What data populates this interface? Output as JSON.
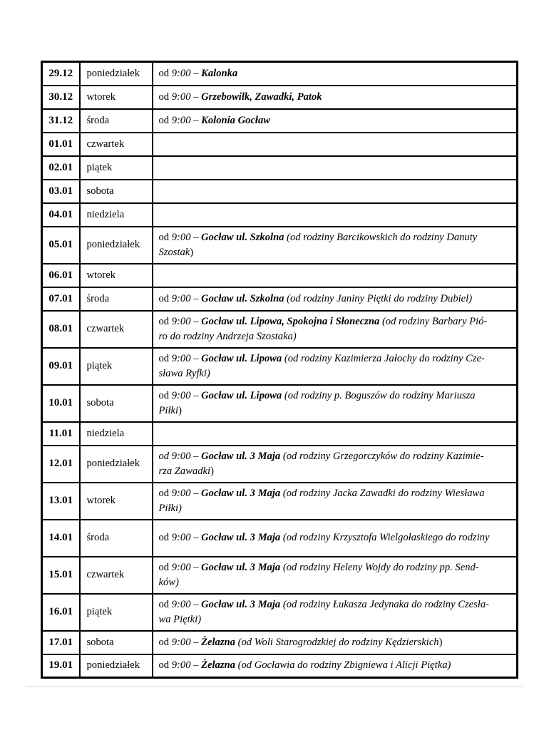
{
  "colors": {
    "background": "#ffffff",
    "table_border": "#000000",
    "text": "#000000",
    "shadow_line": "#d7d7d7"
  },
  "segment_styles": {
    "r": "regular",
    "i": "italic",
    "b": "bold-italic"
  },
  "table": {
    "columns": [
      "date",
      "day",
      "description"
    ],
    "rows": [
      {
        "date": "29.12",
        "day": "poniedziałek",
        "desc": [
          {
            "t": "od ",
            "s": "r"
          },
          {
            "t": "9:00",
            "s": "i"
          },
          {
            "t": " – ",
            "s": "r"
          },
          {
            "t": "Kalonka",
            "s": "b"
          }
        ]
      },
      {
        "date": "30.12",
        "day": "wtorek",
        "desc": [
          {
            "t": "od ",
            "s": "r"
          },
          {
            "t": "9:00",
            "s": "i"
          },
          {
            "t": " – ",
            "s": "r"
          },
          {
            "t": "Grzebowilk, Zawadki, Patok",
            "s": "b"
          }
        ]
      },
      {
        "date": "31.12",
        "day": "środa",
        "desc": [
          {
            "t": "od ",
            "s": "r"
          },
          {
            "t": "9:00",
            "s": "i"
          },
          {
            "t": " – ",
            "s": "r"
          },
          {
            "t": "Kolonia Gocław",
            "s": "b"
          }
        ]
      },
      {
        "date": "01.01",
        "day": "czwartek",
        "desc": []
      },
      {
        "date": "02.01",
        "day": "piątek",
        "desc": []
      },
      {
        "date": "03.01",
        "day": "sobota",
        "desc": []
      },
      {
        "date": "04.01",
        "day": "niedziela",
        "desc": []
      },
      {
        "date": "05.01",
        "day": "poniedziałek",
        "desc": [
          {
            "t": "od ",
            "s": "r"
          },
          {
            "t": "9:00",
            "s": "i"
          },
          {
            "t": " – ",
            "s": "r"
          },
          {
            "t": "Gocław ul. Szkolna",
            "s": "b"
          },
          {
            "t": " ",
            "s": "r"
          },
          {
            "t": "(od rodziny Barcikowskich do rodziny Danuty\nSzostak",
            "s": "i"
          },
          {
            "t": ")",
            "s": "r"
          }
        ]
      },
      {
        "date": "06.01",
        "day": "wtorek",
        "desc": []
      },
      {
        "date": "07.01",
        "day": "środa",
        "desc": [
          {
            "t": "od ",
            "s": "r"
          },
          {
            "t": "9:00",
            "s": "i"
          },
          {
            "t": " – ",
            "s": "r"
          },
          {
            "t": "Gocław ul. Szkolna",
            "s": "b"
          },
          {
            "t": " ",
            "s": "r"
          },
          {
            "t": "(od rodziny Janiny Piętki do rodziny Dubiel)",
            "s": "i"
          }
        ]
      },
      {
        "date": "08.01",
        "day": "czwartek",
        "desc": [
          {
            "t": "od ",
            "s": "r"
          },
          {
            "t": "9:00",
            "s": "i"
          },
          {
            "t": " – ",
            "s": "r"
          },
          {
            "t": "Gocław ul. Lipowa, Spokojna i Słoneczna",
            "s": "b"
          },
          {
            "t": " ",
            "s": "r"
          },
          {
            "t": "(od rodziny Barbary Pió-\nro do rodziny Andrzeja Szostaka)",
            "s": "i"
          }
        ]
      },
      {
        "date": "09.01",
        "day": "piątek",
        "desc": [
          {
            "t": "od ",
            "s": "r"
          },
          {
            "t": "9:00",
            "s": "i"
          },
          {
            "t": " – ",
            "s": "r"
          },
          {
            "t": "Gocław ul. Lipowa",
            "s": "b"
          },
          {
            "t": " ",
            "s": "r"
          },
          {
            "t": "(od rodziny Kazimierza Jałochy do rodziny Cze-\nsława Ryfki)",
            "s": "i"
          }
        ]
      },
      {
        "date": "10.01",
        "day": "sobota",
        "desc": [
          {
            "t": "od ",
            "s": "r"
          },
          {
            "t": "9:00",
            "s": "i"
          },
          {
            "t": " – ",
            "s": "r"
          },
          {
            "t": "Gocław ul. Lipowa",
            "s": "b"
          },
          {
            "t": " ",
            "s": "r"
          },
          {
            "t": "(od rodziny p. Boguszów do rodziny Mariusza\nPiłki",
            "s": "i"
          },
          {
            "t": ")",
            "s": "r"
          }
        ]
      },
      {
        "date": "11.01",
        "day": "niedziela",
        "desc": []
      },
      {
        "date": "12.01",
        "day": "poniedziałek",
        "desc": [
          {
            "t": "od 9:00 – ",
            "s": "i"
          },
          {
            "t": "Gocław ul. 3 Maja",
            "s": "b"
          },
          {
            "t": " ",
            "s": "r"
          },
          {
            "t": "(od rodziny Grzegorczyków do rodziny Kazimie-\nrza Zawadki",
            "s": "i"
          },
          {
            "t": ")",
            "s": "r"
          }
        ]
      },
      {
        "date": "13.01",
        "day": "wtorek",
        "desc": [
          {
            "t": "od ",
            "s": "r"
          },
          {
            "t": "9:00",
            "s": "i"
          },
          {
            "t": " – ",
            "s": "r"
          },
          {
            "t": "Gocław ul. 3 Maja",
            "s": "b"
          },
          {
            "t": " ",
            "s": "r"
          },
          {
            "t": "(od rodziny Jacka Zawadki do rodziny Wiesława\nPiłki)",
            "s": "i"
          }
        ]
      },
      {
        "date": "14.01",
        "day": "środa",
        "tall": true,
        "desc": [
          {
            "t": "od ",
            "s": "r"
          },
          {
            "t": "9:00",
            "s": "i"
          },
          {
            "t": " – ",
            "s": "r"
          },
          {
            "t": "Gocław ul. 3 Maja",
            "s": "b"
          },
          {
            "t": " ",
            "s": "r"
          },
          {
            "t": "(od rodziny Krzysztofa Wielgołaskiego do rodziny",
            "s": "i"
          }
        ]
      },
      {
        "date": "15.01",
        "day": "czwartek",
        "desc": [
          {
            "t": "od ",
            "s": "r"
          },
          {
            "t": "9:00",
            "s": "i"
          },
          {
            "t": " – ",
            "s": "r"
          },
          {
            "t": "Gocław ul. 3 Maja",
            "s": "b"
          },
          {
            "t": " ",
            "s": "r"
          },
          {
            "t": "(od rodziny Heleny Wojdy do rodziny pp. Send-\nków)",
            "s": "i"
          }
        ]
      },
      {
        "date": "16.01",
        "day": "piątek",
        "desc": [
          {
            "t": "od ",
            "s": "r"
          },
          {
            "t": "9:00",
            "s": "i"
          },
          {
            "t": " – ",
            "s": "r"
          },
          {
            "t": "Gocław ul. 3 Maja",
            "s": "b"
          },
          {
            "t": " ",
            "s": "r"
          },
          {
            "t": "(od rodziny Łukasza Jedynaka do rodziny Czesła-\nwa Piętki)",
            "s": "i"
          }
        ]
      },
      {
        "date": "17.01",
        "day": "sobota",
        "desc": [
          {
            "t": "od ",
            "s": "r"
          },
          {
            "t": "9:00",
            "s": "i"
          },
          {
            "t": " – ",
            "s": "r"
          },
          {
            "t": "Żelazna",
            "s": "b"
          },
          {
            "t": " ",
            "s": "r"
          },
          {
            "t": "(od Woli Starogrodzkiej do rodziny Kędzierskich",
            "s": "i"
          },
          {
            "t": ")",
            "s": "r"
          }
        ]
      },
      {
        "date": "19.01",
        "day": "poniedziałek",
        "desc": [
          {
            "t": "od ",
            "s": "r"
          },
          {
            "t": "9:00",
            "s": "i"
          },
          {
            "t": " – ",
            "s": "r"
          },
          {
            "t": "Żelazna",
            "s": "b"
          },
          {
            "t": " ",
            "s": "r"
          },
          {
            "t": "(od Gocławia do rodziny Zbigniewa i Alicji Piętka)",
            "s": "i"
          }
        ]
      }
    ]
  }
}
